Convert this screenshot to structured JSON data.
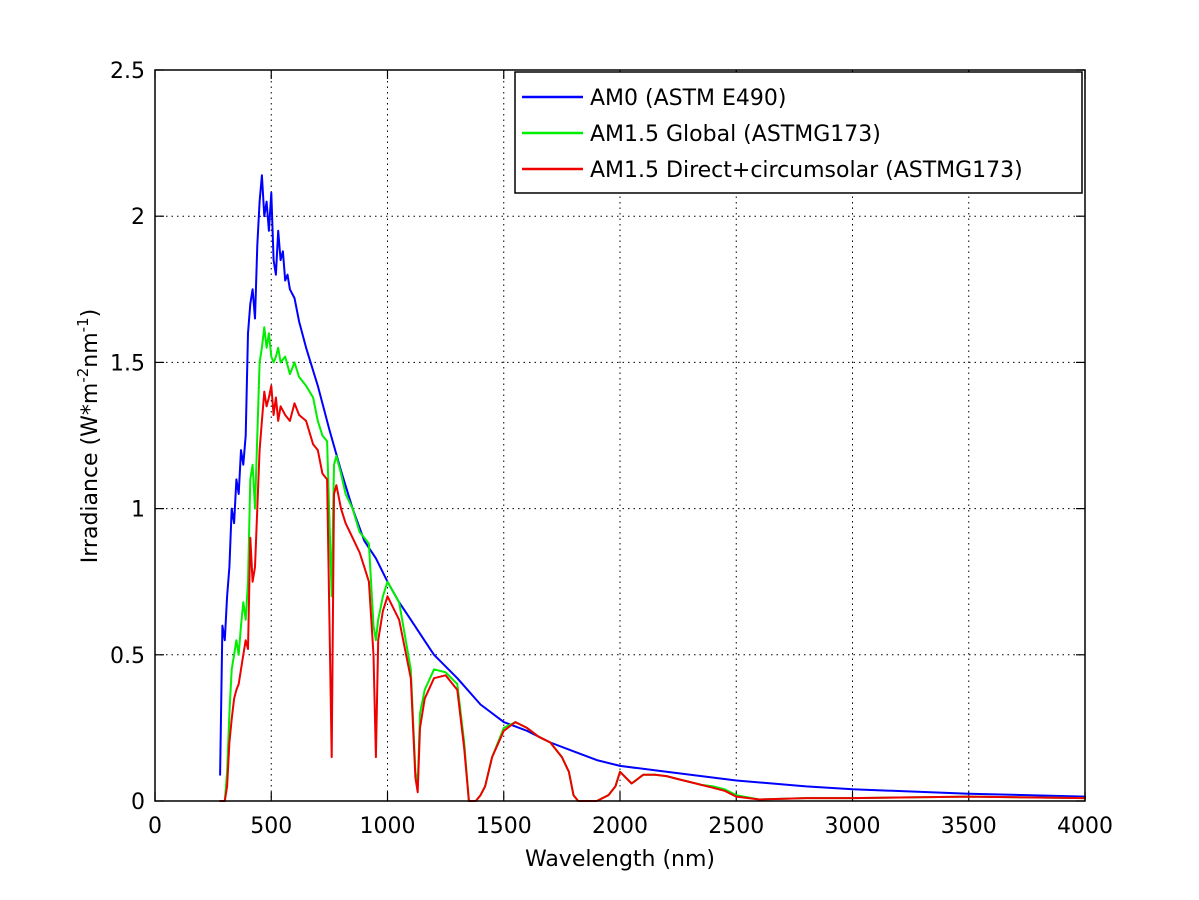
{
  "chart_data": {
    "type": "line",
    "title": "",
    "xlabel": "Wavelength (nm)",
    "ylabel": {
      "base": "Irradiance (W*m",
      "sup1": "-2",
      "mid": "nm",
      "sup2": "-1",
      "end": ")"
    },
    "xlim": [
      0,
      4000
    ],
    "ylim": [
      0,
      2.5
    ],
    "x_ticks": [
      0,
      500,
      1000,
      1500,
      2000,
      2500,
      3000,
      3500,
      4000
    ],
    "x_tick_labels": [
      "0",
      "500",
      "1000",
      "1500",
      "2000",
      "2500",
      "3000",
      "3500",
      "4000"
    ],
    "y_ticks": [
      0,
      0.5,
      1,
      1.5,
      2,
      2.5
    ],
    "y_tick_labels": [
      "0",
      "0.5",
      "1",
      "1.5",
      "2",
      "2.5"
    ],
    "grid": true,
    "legend_position": "top-right",
    "series": [
      {
        "name": "AM0 (ASTM E490)",
        "color": "#0000ff",
        "x": [
          280,
          290,
          300,
          310,
          320,
          330,
          340,
          350,
          360,
          370,
          380,
          390,
          400,
          410,
          420,
          430,
          440,
          450,
          460,
          470,
          480,
          490,
          500,
          510,
          520,
          530,
          540,
          550,
          560,
          570,
          580,
          600,
          620,
          650,
          700,
          750,
          800,
          850,
          900,
          950,
          1000,
          1050,
          1100,
          1150,
          1200,
          1300,
          1400,
          1500,
          1600,
          1700,
          1800,
          1900,
          2000,
          2200,
          2500,
          2800,
          3000,
          3500,
          4000
        ],
        "y": [
          0.09,
          0.6,
          0.55,
          0.7,
          0.8,
          1.0,
          0.95,
          1.1,
          1.05,
          1.2,
          1.15,
          1.25,
          1.6,
          1.7,
          1.75,
          1.65,
          1.9,
          2.05,
          2.14,
          2.0,
          2.05,
          1.95,
          2.08,
          1.85,
          1.8,
          1.95,
          1.85,
          1.88,
          1.78,
          1.8,
          1.75,
          1.72,
          1.64,
          1.55,
          1.42,
          1.27,
          1.13,
          1.0,
          0.89,
          0.83,
          0.75,
          0.68,
          0.62,
          0.56,
          0.5,
          0.42,
          0.33,
          0.27,
          0.24,
          0.2,
          0.17,
          0.14,
          0.12,
          0.1,
          0.07,
          0.05,
          0.04,
          0.025,
          0.015
        ]
      },
      {
        "name": "AM1.5 Global (ASTMG173)",
        "color": "#00ee00",
        "x": [
          280,
          300,
          310,
          320,
          330,
          340,
          350,
          360,
          370,
          380,
          390,
          400,
          410,
          420,
          430,
          440,
          450,
          460,
          470,
          480,
          490,
          500,
          510,
          520,
          530,
          540,
          560,
          580,
          600,
          620,
          650,
          680,
          700,
          720,
          740,
          760,
          770,
          780,
          800,
          820,
          850,
          880,
          900,
          920,
          940,
          950,
          960,
          980,
          1000,
          1050,
          1100,
          1120,
          1130,
          1140,
          1160,
          1200,
          1250,
          1300,
          1330,
          1350,
          1380,
          1400,
          1420,
          1450,
          1500,
          1550,
          1600,
          1650,
          1700,
          1750,
          1780,
          1800,
          1820,
          1850,
          1900,
          1950,
          1980,
          2000,
          2050,
          2100,
          2150,
          2200,
          2250,
          2300,
          2350,
          2400,
          2450,
          2500,
          2600,
          2800,
          3000,
          3500,
          4000
        ],
        "y": [
          0,
          0,
          0.1,
          0.3,
          0.45,
          0.5,
          0.55,
          0.5,
          0.6,
          0.68,
          0.62,
          0.75,
          1.1,
          1.15,
          1.0,
          1.25,
          1.5,
          1.55,
          1.62,
          1.55,
          1.6,
          1.52,
          1.5,
          1.52,
          1.55,
          1.5,
          1.52,
          1.46,
          1.5,
          1.45,
          1.42,
          1.38,
          1.3,
          1.25,
          1.23,
          0.7,
          1.15,
          1.18,
          1.12,
          1.05,
          1.0,
          0.92,
          0.9,
          0.88,
          0.6,
          0.55,
          0.62,
          0.7,
          0.75,
          0.68,
          0.45,
          0.1,
          0.05,
          0.3,
          0.38,
          0.45,
          0.44,
          0.4,
          0.2,
          0.0,
          0.0,
          0.02,
          0.05,
          0.15,
          0.25,
          0.27,
          0.25,
          0.22,
          0.2,
          0.15,
          0.1,
          0.02,
          0.0,
          0.0,
          0.0,
          0.02,
          0.05,
          0.1,
          0.06,
          0.09,
          0.09,
          0.085,
          0.075,
          0.065,
          0.055,
          0.05,
          0.04,
          0.02,
          0.005,
          0.01,
          0.01,
          0.015,
          0.01
        ]
      },
      {
        "name": "AM1.5 Direct+circumsolar (ASTMG173)",
        "color": "#ee0000",
        "x": [
          280,
          300,
          310,
          320,
          330,
          340,
          350,
          360,
          370,
          380,
          390,
          400,
          410,
          420,
          430,
          440,
          450,
          460,
          470,
          480,
          490,
          500,
          510,
          520,
          530,
          540,
          560,
          580,
          600,
          620,
          650,
          680,
          700,
          720,
          740,
          760,
          770,
          780,
          800,
          820,
          850,
          880,
          900,
          920,
          940,
          950,
          960,
          980,
          1000,
          1050,
          1100,
          1120,
          1130,
          1140,
          1160,
          1200,
          1250,
          1300,
          1330,
          1350,
          1380,
          1400,
          1420,
          1450,
          1500,
          1550,
          1600,
          1650,
          1700,
          1750,
          1780,
          1800,
          1820,
          1850,
          1900,
          1950,
          1980,
          2000,
          2050,
          2100,
          2150,
          2200,
          2250,
          2300,
          2350,
          2400,
          2450,
          2500,
          2600,
          2800,
          3000,
          3500,
          4000
        ],
        "y": [
          0,
          0,
          0.05,
          0.2,
          0.28,
          0.35,
          0.38,
          0.4,
          0.45,
          0.5,
          0.55,
          0.52,
          0.9,
          0.75,
          0.8,
          1.0,
          1.2,
          1.3,
          1.4,
          1.35,
          1.38,
          1.42,
          1.32,
          1.38,
          1.3,
          1.35,
          1.32,
          1.3,
          1.36,
          1.32,
          1.3,
          1.22,
          1.2,
          1.12,
          1.1,
          0.15,
          1.05,
          1.08,
          1.0,
          0.95,
          0.9,
          0.85,
          0.8,
          0.75,
          0.5,
          0.15,
          0.55,
          0.65,
          0.7,
          0.62,
          0.42,
          0.08,
          0.03,
          0.25,
          0.35,
          0.42,
          0.43,
          0.38,
          0.18,
          0.0,
          0.0,
          0.02,
          0.05,
          0.15,
          0.24,
          0.27,
          0.25,
          0.22,
          0.2,
          0.15,
          0.1,
          0.02,
          0.0,
          0.0,
          0.0,
          0.02,
          0.05,
          0.1,
          0.06,
          0.09,
          0.09,
          0.085,
          0.075,
          0.065,
          0.055,
          0.045,
          0.035,
          0.015,
          0.005,
          0.01,
          0.01,
          0.015,
          0.01
        ]
      }
    ]
  }
}
